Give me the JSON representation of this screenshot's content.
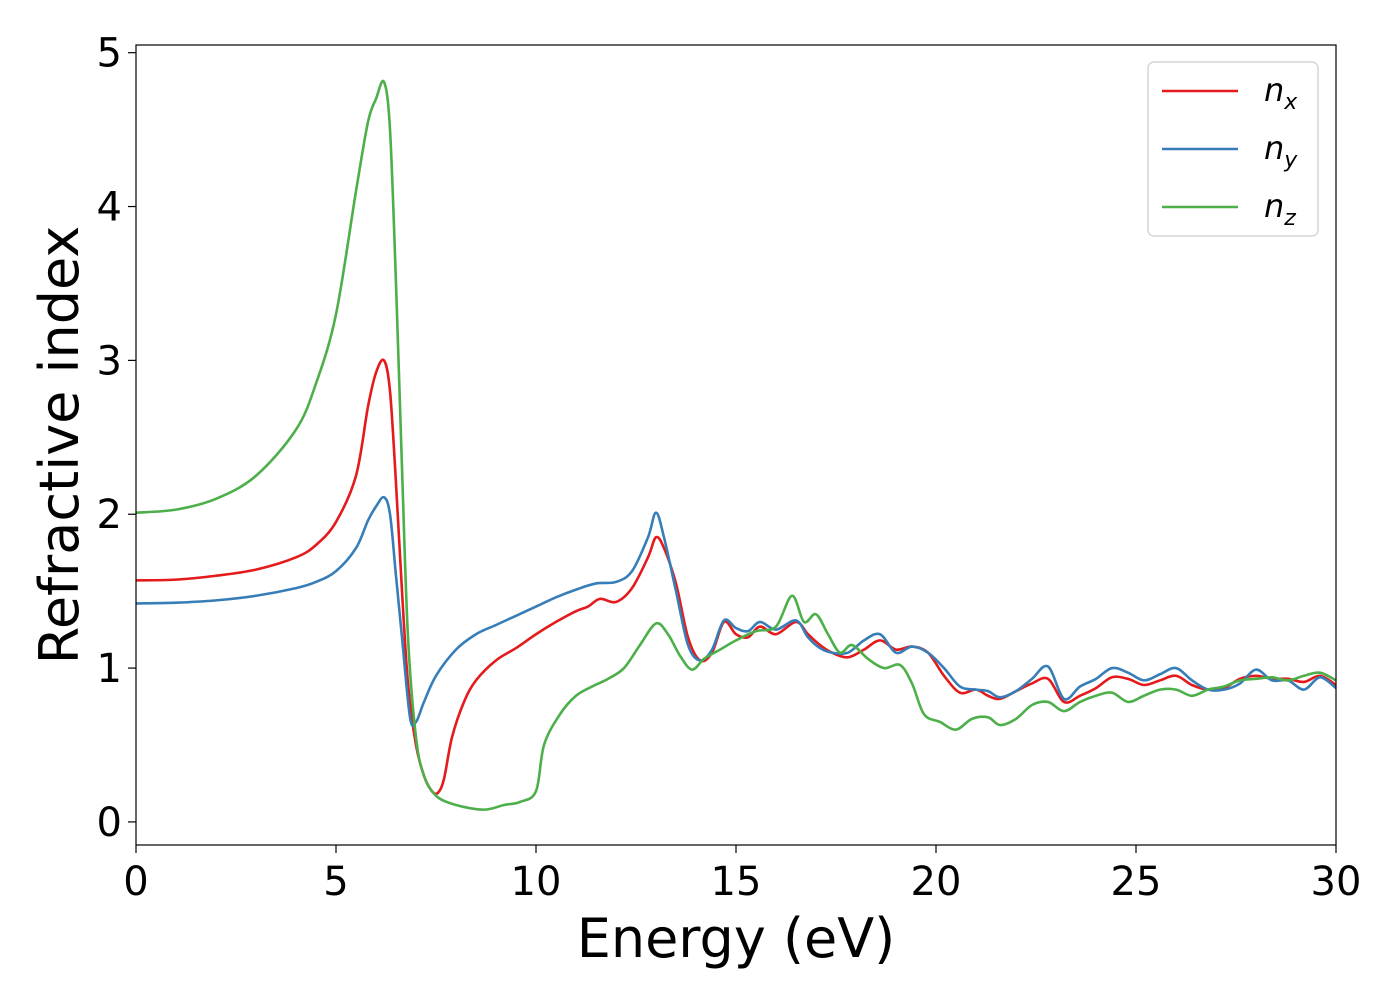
{
  "chart_data": {
    "type": "line",
    "title": "",
    "xlabel": "Energy (eV)",
    "ylabel": "Refractive index",
    "xlim": [
      0,
      30
    ],
    "ylim": [
      -0.15,
      5.05
    ],
    "xticks": [
      0,
      5,
      10,
      15,
      20,
      25,
      30
    ],
    "yticks": [
      0,
      1,
      2,
      3,
      4,
      5
    ],
    "grid": false,
    "legend_position": "top-right",
    "series": [
      {
        "name": "n",
        "sub": "x",
        "color": "#e41a1c",
        "points": [
          [
            0,
            1.57
          ],
          [
            1,
            1.575
          ],
          [
            2,
            1.6
          ],
          [
            3,
            1.64
          ],
          [
            4,
            1.72
          ],
          [
            4.5,
            1.8
          ],
          [
            5,
            1.95
          ],
          [
            5.5,
            2.25
          ],
          [
            5.8,
            2.7
          ],
          [
            6.0,
            2.92
          ],
          [
            6.2,
            3.0
          ],
          [
            6.35,
            2.8
          ],
          [
            6.5,
            2.2
          ],
          [
            6.65,
            1.5
          ],
          [
            6.8,
            0.9
          ],
          [
            7.0,
            0.5
          ],
          [
            7.2,
            0.3
          ],
          [
            7.4,
            0.2
          ],
          [
            7.55,
            0.19
          ],
          [
            7.7,
            0.28
          ],
          [
            7.9,
            0.55
          ],
          [
            8.2,
            0.78
          ],
          [
            8.5,
            0.92
          ],
          [
            9,
            1.05
          ],
          [
            9.5,
            1.13
          ],
          [
            10,
            1.22
          ],
          [
            10.5,
            1.3
          ],
          [
            11,
            1.37
          ],
          [
            11.3,
            1.4
          ],
          [
            11.6,
            1.45
          ],
          [
            12,
            1.43
          ],
          [
            12.4,
            1.52
          ],
          [
            12.8,
            1.72
          ],
          [
            13,
            1.85
          ],
          [
            13.2,
            1.78
          ],
          [
            13.5,
            1.55
          ],
          [
            13.8,
            1.2
          ],
          [
            14.1,
            1.05
          ],
          [
            14.4,
            1.1
          ],
          [
            14.7,
            1.3
          ],
          [
            15,
            1.22
          ],
          [
            15.3,
            1.2
          ],
          [
            15.6,
            1.27
          ],
          [
            16,
            1.22
          ],
          [
            16.5,
            1.3
          ],
          [
            16.8,
            1.22
          ],
          [
            17.1,
            1.15
          ],
          [
            17.4,
            1.1
          ],
          [
            17.8,
            1.07
          ],
          [
            18.2,
            1.12
          ],
          [
            18.6,
            1.18
          ],
          [
            19,
            1.12
          ],
          [
            19.4,
            1.14
          ],
          [
            19.8,
            1.1
          ],
          [
            20.2,
            0.95
          ],
          [
            20.6,
            0.84
          ],
          [
            21,
            0.86
          ],
          [
            21.3,
            0.82
          ],
          [
            21.6,
            0.8
          ],
          [
            22,
            0.85
          ],
          [
            22.4,
            0.9
          ],
          [
            22.8,
            0.93
          ],
          [
            23.2,
            0.78
          ],
          [
            23.6,
            0.82
          ],
          [
            24,
            0.87
          ],
          [
            24.4,
            0.94
          ],
          [
            24.8,
            0.93
          ],
          [
            25.2,
            0.89
          ],
          [
            25.6,
            0.92
          ],
          [
            26,
            0.95
          ],
          [
            26.4,
            0.89
          ],
          [
            26.8,
            0.86
          ],
          [
            27.2,
            0.87
          ],
          [
            27.6,
            0.93
          ],
          [
            28,
            0.95
          ],
          [
            28.4,
            0.93
          ],
          [
            28.8,
            0.93
          ],
          [
            29.2,
            0.91
          ],
          [
            29.6,
            0.95
          ],
          [
            30,
            0.89
          ]
        ]
      },
      {
        "name": "n",
        "sub": "y",
        "color": "#377eb8",
        "points": [
          [
            0,
            1.42
          ],
          [
            1,
            1.425
          ],
          [
            2,
            1.44
          ],
          [
            3,
            1.47
          ],
          [
            4,
            1.52
          ],
          [
            4.5,
            1.56
          ],
          [
            5,
            1.63
          ],
          [
            5.5,
            1.78
          ],
          [
            5.8,
            1.96
          ],
          [
            6.0,
            2.05
          ],
          [
            6.2,
            2.11
          ],
          [
            6.35,
            2.0
          ],
          [
            6.5,
            1.6
          ],
          [
            6.65,
            1.2
          ],
          [
            6.85,
            0.68
          ],
          [
            7.0,
            0.65
          ],
          [
            7.2,
            0.78
          ],
          [
            7.5,
            0.95
          ],
          [
            8,
            1.12
          ],
          [
            8.5,
            1.22
          ],
          [
            9,
            1.28
          ],
          [
            9.5,
            1.34
          ],
          [
            10,
            1.4
          ],
          [
            10.5,
            1.46
          ],
          [
            11,
            1.51
          ],
          [
            11.5,
            1.55
          ],
          [
            12,
            1.56
          ],
          [
            12.4,
            1.63
          ],
          [
            12.8,
            1.85
          ],
          [
            13,
            2.01
          ],
          [
            13.2,
            1.85
          ],
          [
            13.5,
            1.5
          ],
          [
            13.8,
            1.15
          ],
          [
            14.1,
            1.05
          ],
          [
            14.4,
            1.12
          ],
          [
            14.7,
            1.31
          ],
          [
            15,
            1.26
          ],
          [
            15.3,
            1.24
          ],
          [
            15.6,
            1.3
          ],
          [
            16,
            1.25
          ],
          [
            16.5,
            1.31
          ],
          [
            16.8,
            1.2
          ],
          [
            17.1,
            1.13
          ],
          [
            17.4,
            1.1
          ],
          [
            17.8,
            1.1
          ],
          [
            18.2,
            1.18
          ],
          [
            18.6,
            1.22
          ],
          [
            19,
            1.1
          ],
          [
            19.4,
            1.14
          ],
          [
            19.8,
            1.1
          ],
          [
            20.2,
            1.0
          ],
          [
            20.6,
            0.88
          ],
          [
            21,
            0.86
          ],
          [
            21.3,
            0.85
          ],
          [
            21.6,
            0.81
          ],
          [
            22,
            0.85
          ],
          [
            22.4,
            0.93
          ],
          [
            22.8,
            1.01
          ],
          [
            23.2,
            0.8
          ],
          [
            23.6,
            0.88
          ],
          [
            24,
            0.93
          ],
          [
            24.4,
            1.0
          ],
          [
            24.8,
            0.97
          ],
          [
            25.2,
            0.92
          ],
          [
            25.6,
            0.96
          ],
          [
            26,
            1.0
          ],
          [
            26.4,
            0.92
          ],
          [
            26.8,
            0.86
          ],
          [
            27.2,
            0.86
          ],
          [
            27.6,
            0.9
          ],
          [
            28,
            0.99
          ],
          [
            28.4,
            0.92
          ],
          [
            28.8,
            0.92
          ],
          [
            29.2,
            0.86
          ],
          [
            29.6,
            0.94
          ],
          [
            30,
            0.87
          ]
        ]
      },
      {
        "name": "n",
        "sub": "z",
        "color": "#4daf4a",
        "points": [
          [
            0,
            2.01
          ],
          [
            1,
            2.03
          ],
          [
            2,
            2.1
          ],
          [
            3,
            2.25
          ],
          [
            4,
            2.55
          ],
          [
            4.5,
            2.85
          ],
          [
            5,
            3.3
          ],
          [
            5.5,
            4.1
          ],
          [
            5.8,
            4.55
          ],
          [
            6.0,
            4.7
          ],
          [
            6.2,
            4.81
          ],
          [
            6.35,
            4.5
          ],
          [
            6.5,
            3.5
          ],
          [
            6.65,
            2.3
          ],
          [
            6.8,
            1.2
          ],
          [
            7.0,
            0.55
          ],
          [
            7.2,
            0.3
          ],
          [
            7.5,
            0.17
          ],
          [
            8,
            0.11
          ],
          [
            8.7,
            0.08
          ],
          [
            9.2,
            0.11
          ],
          [
            9.6,
            0.13
          ],
          [
            10,
            0.2
          ],
          [
            10.2,
            0.5
          ],
          [
            10.6,
            0.7
          ],
          [
            11,
            0.82
          ],
          [
            11.4,
            0.88
          ],
          [
            11.8,
            0.93
          ],
          [
            12.2,
            1.0
          ],
          [
            12.6,
            1.15
          ],
          [
            13,
            1.29
          ],
          [
            13.3,
            1.22
          ],
          [
            13.6,
            1.08
          ],
          [
            13.9,
            0.99
          ],
          [
            14.2,
            1.06
          ],
          [
            14.6,
            1.12
          ],
          [
            15,
            1.18
          ],
          [
            15.5,
            1.24
          ],
          [
            16,
            1.27
          ],
          [
            16.4,
            1.47
          ],
          [
            16.7,
            1.3
          ],
          [
            17,
            1.35
          ],
          [
            17.3,
            1.22
          ],
          [
            17.6,
            1.1
          ],
          [
            17.9,
            1.15
          ],
          [
            18.3,
            1.06
          ],
          [
            18.7,
            1.0
          ],
          [
            19.1,
            1.02
          ],
          [
            19.4,
            0.9
          ],
          [
            19.7,
            0.7
          ],
          [
            20.1,
            0.65
          ],
          [
            20.5,
            0.6
          ],
          [
            20.9,
            0.67
          ],
          [
            21.3,
            0.68
          ],
          [
            21.6,
            0.63
          ],
          [
            22,
            0.67
          ],
          [
            22.4,
            0.76
          ],
          [
            22.8,
            0.78
          ],
          [
            23.2,
            0.72
          ],
          [
            23.6,
            0.78
          ],
          [
            24,
            0.82
          ],
          [
            24.4,
            0.84
          ],
          [
            24.8,
            0.78
          ],
          [
            25.2,
            0.82
          ],
          [
            25.6,
            0.86
          ],
          [
            26,
            0.86
          ],
          [
            26.4,
            0.82
          ],
          [
            26.8,
            0.86
          ],
          [
            27.2,
            0.88
          ],
          [
            27.6,
            0.92
          ],
          [
            28,
            0.93
          ],
          [
            28.4,
            0.94
          ],
          [
            28.8,
            0.92
          ],
          [
            29.2,
            0.95
          ],
          [
            29.6,
            0.97
          ],
          [
            30,
            0.92
          ]
        ]
      }
    ]
  }
}
